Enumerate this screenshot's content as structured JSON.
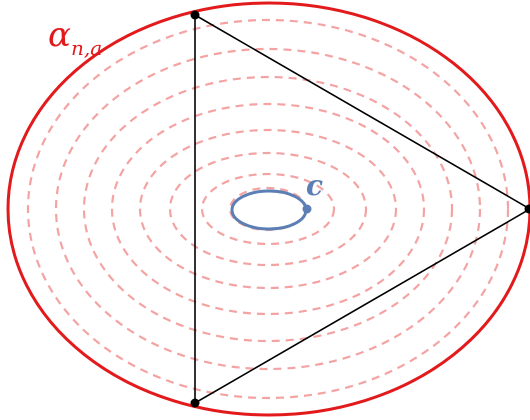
{
  "labels": {
    "alpha_base": "α",
    "alpha_subscript": "n,a",
    "c": "c"
  },
  "colors": {
    "outer_curve": "#e31a1c",
    "level_curves": "#f4a3a3",
    "inner_curve": "#5b7fb5",
    "triangle": "#000000",
    "background": "#ffffff"
  }
}
